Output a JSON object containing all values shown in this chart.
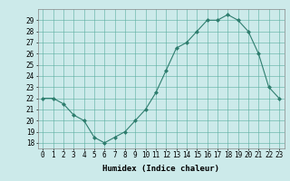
{
  "x": [
    0,
    1,
    2,
    3,
    4,
    5,
    6,
    7,
    8,
    9,
    10,
    11,
    12,
    13,
    14,
    15,
    16,
    17,
    18,
    19,
    20,
    21,
    22,
    23
  ],
  "y": [
    22,
    22,
    21.5,
    20.5,
    20,
    18.5,
    18,
    18.5,
    19,
    20,
    21,
    22.5,
    24.5,
    26.5,
    27,
    28,
    29,
    29,
    29.5,
    29,
    28,
    26,
    23,
    22
  ],
  "line_color": "#2e7d6e",
  "marker": "D",
  "marker_size": 2,
  "bg_color": "#cceaea",
  "grid_color": "#5aada0",
  "xlabel": "Humidex (Indice chaleur)",
  "ylabel": "",
  "xlim": [
    -0.5,
    23.5
  ],
  "ylim": [
    17.5,
    30
  ],
  "yticks": [
    18,
    19,
    20,
    21,
    22,
    23,
    24,
    25,
    26,
    27,
    28,
    29
  ],
  "xticks": [
    0,
    1,
    2,
    3,
    4,
    5,
    6,
    7,
    8,
    9,
    10,
    11,
    12,
    13,
    14,
    15,
    16,
    17,
    18,
    19,
    20,
    21,
    22,
    23
  ],
  "tick_fontsize": 5.5,
  "label_fontsize": 6.5
}
